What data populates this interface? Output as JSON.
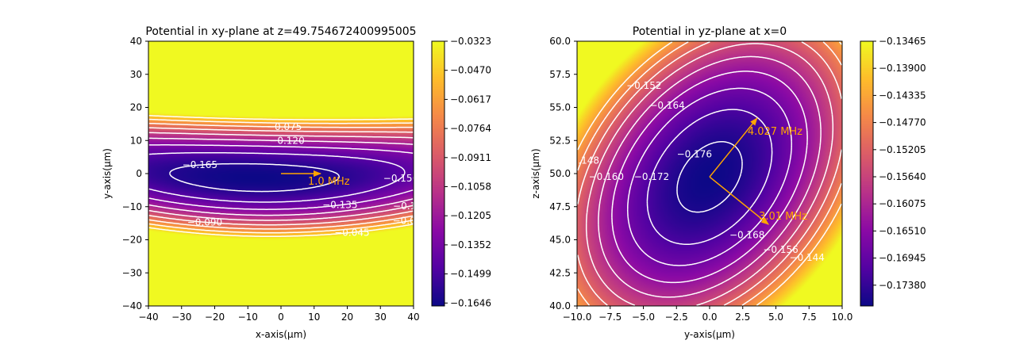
{
  "chart_data": [
    {
      "type": "heatmap",
      "title": "Potential in xy-plane at z=49.754672400995005",
      "xlabel": "x-axis(μm)",
      "ylabel": "y-axis(μm)",
      "xlim": [
        -40,
        40
      ],
      "ylim": [
        -40,
        40
      ],
      "x_ticks": [
        "−40",
        "−30",
        "−20",
        "−10",
        "0",
        "10",
        "20",
        "30",
        "40"
      ],
      "y_ticks": [
        "−40",
        "−30",
        "−20",
        "−10",
        "0",
        "10",
        "20",
        "30",
        "40"
      ],
      "colormap": "plasma",
      "colorbar": {
        "range": [
          -0.172,
          -0.0323
        ],
        "ticks": [
          "−0.0323",
          "−0.0470",
          "−0.0617",
          "−0.0764",
          "−0.0911",
          "−0.1058",
          "−0.1205",
          "−0.1352",
          "−0.1499",
          "−0.1646"
        ]
      },
      "contour_levels": [
        {
          "value": -0.165,
          "label": "−0.165"
        },
        {
          "value": -0.15,
          "label": "−0.150"
        },
        {
          "value": -0.135,
          "label": "−0.135"
        },
        {
          "value": -0.12,
          "label": "−0.120"
        },
        {
          "value": -0.105,
          "label": "−0.105"
        },
        {
          "value": -0.09,
          "label": "−0.090"
        },
        {
          "value": -0.075,
          "label": "−0.075"
        },
        {
          "value": -0.06,
          "label": "−0.060"
        },
        {
          "value": -0.045,
          "label": "−0.045"
        }
      ],
      "annotations": [
        {
          "label": "1.0 MHz",
          "origin": [
            0,
            0
          ],
          "direction": [
            1,
            0
          ],
          "color": "#ffa500"
        }
      ]
    },
    {
      "type": "heatmap",
      "title": "Potential in yz-plane at x=0",
      "xlabel": "y-axis(μm)",
      "ylabel": "z-axis(μm)",
      "xlim": [
        -10,
        10
      ],
      "ylim": [
        40,
        60
      ],
      "x_ticks": [
        "−10.0",
        "−7.5",
        "−5.0",
        "−2.5",
        "0.0",
        "2.5",
        "5.0",
        "7.5",
        "10.0"
      ],
      "y_ticks": [
        "40.0",
        "42.5",
        "45.0",
        "47.5",
        "50.0",
        "52.5",
        "55.0",
        "57.5",
        "60.0"
      ],
      "colormap": "plasma",
      "colorbar": {
        "range": [
          -0.1775,
          -0.13465
        ],
        "ticks": [
          "−0.13465",
          "−0.13900",
          "−0.14335",
          "−0.14770",
          "−0.15205",
          "−0.15640",
          "−0.16075",
          "−0.16510",
          "−0.16945",
          "−0.17380"
        ]
      },
      "contour_levels": [
        {
          "value": -0.176,
          "label": "−0.176"
        },
        {
          "value": -0.172,
          "label": "−0.172"
        },
        {
          "value": -0.168,
          "label": "−0.168"
        },
        {
          "value": -0.164,
          "label": "−0.164"
        },
        {
          "value": -0.16,
          "label": "−0.160"
        },
        {
          "value": -0.156,
          "label": "−0.156"
        },
        {
          "value": -0.152,
          "label": "−0.152"
        },
        {
          "value": -0.148,
          "label": "−0.148"
        },
        {
          "value": -0.144,
          "label": "−0.144"
        }
      ],
      "annotations": [
        {
          "label": "4.027 MHz",
          "origin": [
            0,
            49.75
          ],
          "direction": [
            0.63,
            0.78
          ],
          "color": "#ffa500"
        },
        {
          "label": "3.01 MHz",
          "origin": [
            0,
            49.75
          ],
          "direction": [
            0.78,
            -0.63
          ],
          "color": "#ffa500"
        }
      ]
    }
  ]
}
